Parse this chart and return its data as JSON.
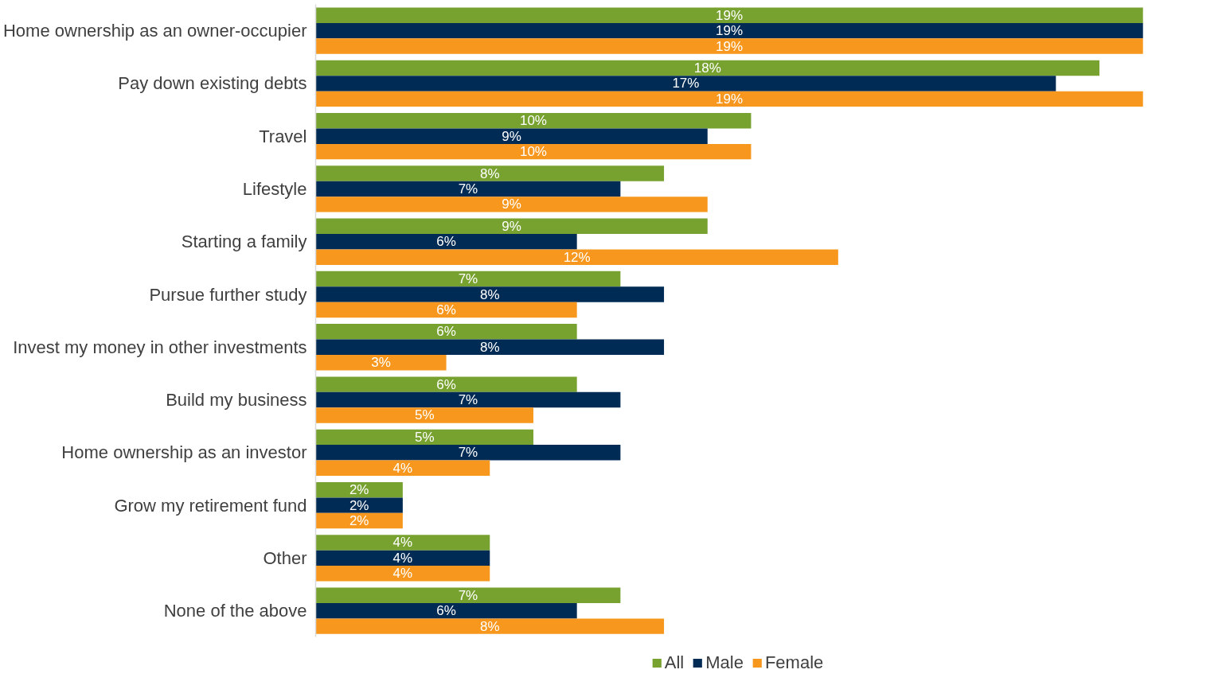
{
  "chart_data": {
    "type": "bar",
    "orientation": "horizontal",
    "categories": [
      "Home ownership as an owner-occupier",
      "Pay down existing debts",
      "Travel",
      "Lifestyle",
      "Starting a family",
      "Pursue further study",
      "Invest my money in other investments",
      "Build my business",
      "Home ownership as an investor",
      "Grow my retirement fund",
      "Other",
      "None of the above"
    ],
    "series": [
      {
        "name": "All",
        "color": "#77a22f",
        "values": [
          19,
          18,
          10,
          8,
          9,
          7,
          6,
          6,
          5,
          2,
          4,
          7
        ],
        "value_labels": [
          "19%",
          "18%",
          "10%",
          "8%",
          "9%",
          "7%",
          "6%",
          "6%",
          "5%",
          "2%",
          "4%",
          "7%"
        ]
      },
      {
        "name": "Male",
        "color": "#002b54",
        "values": [
          19,
          17,
          9,
          7,
          6,
          8,
          8,
          7,
          7,
          2,
          4,
          6
        ],
        "value_labels": [
          "19%",
          "17%",
          "9%",
          "7%",
          "6%",
          "8%",
          "8%",
          "7%",
          "7%",
          "2%",
          "4%",
          "6%"
        ]
      },
      {
        "name": "Female",
        "color": "#f7971d",
        "values": [
          19,
          19,
          10,
          9,
          12,
          6,
          3,
          5,
          4,
          2,
          4,
          8
        ],
        "value_labels": [
          "19%",
          "19%",
          "10%",
          "9%",
          "12%",
          "6%",
          "3%",
          "5%",
          "4%",
          "2%",
          "4%",
          "8%"
        ]
      }
    ],
    "tick_labels": "y",
    "legend": "bottom"
  }
}
